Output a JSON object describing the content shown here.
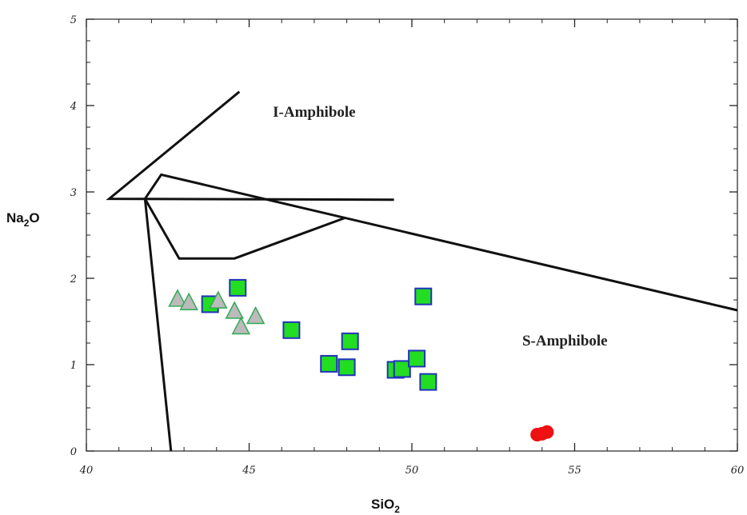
{
  "chart_data": {
    "type": "scatter",
    "xlabel": {
      "main": "SiO",
      "sub": "2"
    },
    "ylabel": {
      "main": "Na",
      "sub": "2",
      "tail": "O"
    },
    "xlim": [
      40,
      60
    ],
    "ylim": [
      0,
      5
    ],
    "x_ticks": [
      {
        "value": 40,
        "label": "40"
      },
      {
        "value": 45,
        "label": "45"
      },
      {
        "value": 50,
        "label": "50"
      },
      {
        "value": 55,
        "label": "55"
      },
      {
        "value": 60,
        "label": "60"
      }
    ],
    "y_ticks": [
      {
        "value": 0,
        "label": "0"
      },
      {
        "value": 1,
        "label": "1"
      },
      {
        "value": 2,
        "label": "2"
      },
      {
        "value": 3,
        "label": "3"
      },
      {
        "value": 4,
        "label": "4"
      },
      {
        "value": 5,
        "label": "5"
      }
    ],
    "minor_step_x": 1,
    "minor_step_y": 0.25,
    "region_labels": [
      {
        "text": "I-Amphibole",
        "x": 47.0,
        "y": 3.87
      },
      {
        "text": "S-Amphibole",
        "x": 54.7,
        "y": 1.22
      }
    ],
    "boundary_lines": [
      {
        "points": [
          [
            44.7,
            4.16
          ],
          [
            40.7,
            2.92
          ],
          [
            49.45,
            2.91
          ]
        ]
      },
      {
        "points": [
          [
            42.6,
            0.0
          ],
          [
            41.8,
            2.92
          ],
          [
            42.3,
            3.2
          ],
          [
            60.0,
            1.63
          ]
        ]
      },
      {
        "points": [
          [
            41.8,
            2.92
          ],
          [
            42.85,
            2.23
          ],
          [
            44.55,
            2.23
          ],
          [
            47.95,
            2.7
          ]
        ]
      }
    ],
    "series": [
      {
        "marker": "square",
        "fill": "#22dd22",
        "stroke": "#2233bb",
        "points": [
          [
            43.8,
            1.7
          ],
          [
            44.65,
            1.89
          ],
          [
            46.3,
            1.4
          ],
          [
            47.45,
            1.01
          ],
          [
            48.0,
            0.97
          ],
          [
            48.1,
            1.27
          ],
          [
            49.5,
            0.94
          ],
          [
            49.7,
            0.95
          ],
          [
            50.15,
            1.07
          ],
          [
            50.5,
            0.8
          ],
          [
            50.35,
            1.79
          ]
        ]
      },
      {
        "marker": "triangle",
        "fill": "#bbbbbb",
        "stroke": "#33aa55",
        "points": [
          [
            42.8,
            1.76
          ],
          [
            43.15,
            1.72
          ],
          [
            44.05,
            1.74
          ],
          [
            44.55,
            1.62
          ],
          [
            44.75,
            1.44
          ],
          [
            45.2,
            1.56
          ]
        ]
      },
      {
        "marker": "circle",
        "fill": "#ee1111",
        "stroke": "#ee1111",
        "points": [
          [
            54.0,
            0.2
          ],
          [
            54.15,
            0.22
          ],
          [
            53.85,
            0.19
          ]
        ]
      }
    ]
  }
}
